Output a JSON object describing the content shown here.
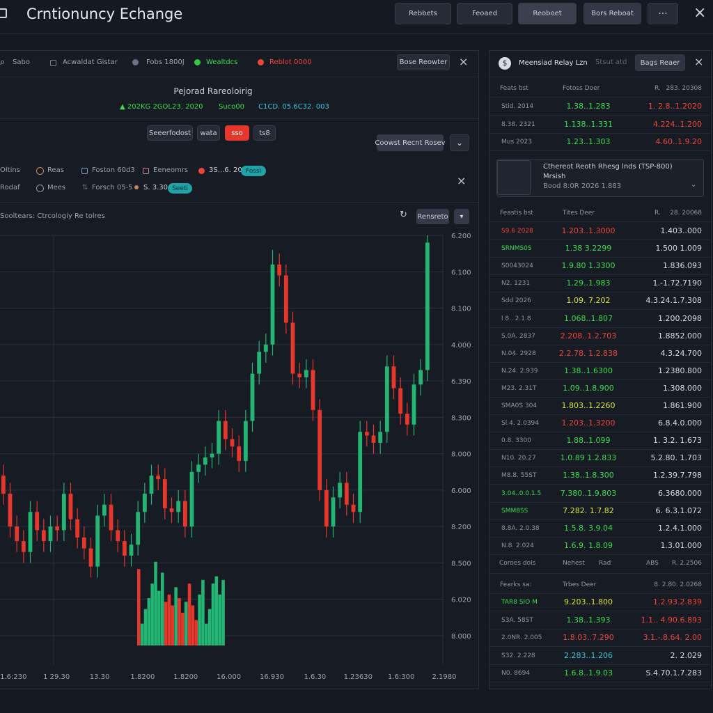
{
  "header": {
    "title": "Crntionuncy Echange",
    "buttons": [
      "Rebbets",
      "Feoaed",
      "Reoboet",
      "Bors Reboat"
    ]
  },
  "left_panel": {
    "toolbar": {
      "search": "Sabo",
      "items": [
        "Acwaldat Gistar",
        "Fobs 1800J",
        "Wealtdcs",
        "Reblot 0000"
      ],
      "button": "Bose Reowter"
    },
    "summary": {
      "title": "Pejorad Rareoloirig",
      "stats": [
        "▲ 202KG 2GOL23. 2020",
        "Suco00",
        "C1CD. 05.6C32. 003"
      ]
    },
    "tabs": [
      "Seeerfodost",
      "wata",
      "sso",
      "ts8"
    ],
    "action": "Coowst Recnt Rosev",
    "filters": [
      [
        "Oltins",
        "Reas",
        "Foston 60d3",
        "Eeneomrs",
        "3S...6. 200",
        "Fossi"
      ],
      [
        "Rodaf",
        "Mees",
        "Forsch 05-5",
        "S. 3.30",
        "Seeti"
      ]
    ],
    "chart_title": "Sooltears: Ctrcologiy Re tolres",
    "chart_button": "Rensreto"
  },
  "chart_data": {
    "type": "candlestick",
    "up_color": "#22b573",
    "down_color": "#e5372c",
    "grid": true,
    "xlim": [
      -0.5,
      65.5
    ],
    "ylim": [
      0,
      11
    ],
    "xticks": [
      {
        "value": 1.5,
        "label": "1.6:230"
      },
      {
        "value": 7.9,
        "label": "1 29.30"
      },
      {
        "value": 14.3,
        "label": "13.30"
      },
      {
        "value": 20.7,
        "label": "1.8200"
      },
      {
        "value": 27.1,
        "label": "1.8200"
      },
      {
        "value": 33.5,
        "label": "16.000"
      },
      {
        "value": 39.9,
        "label": "16.930"
      },
      {
        "value": 46.3,
        "label": "1.6.30"
      },
      {
        "value": 52.7,
        "label": "1.23630"
      },
      {
        "value": 59.1,
        "label": "1.6:300"
      },
      {
        "value": 65.5,
        "label": "2.1980"
      }
    ],
    "yticks": [
      {
        "value": 0,
        "label": "8.000"
      },
      {
        "value": 1,
        "label": "6.020"
      },
      {
        "value": 2,
        "label": "8.500"
      },
      {
        "value": 3,
        "label": "8.200"
      },
      {
        "value": 4,
        "label": "6.000"
      },
      {
        "value": 5,
        "label": "8.000"
      },
      {
        "value": 6,
        "label": "8.300"
      },
      {
        "value": 7,
        "label": "6.390"
      },
      {
        "value": 8,
        "label": "4.000"
      },
      {
        "value": 9,
        "label": "8.100"
      },
      {
        "value": 10,
        "label": "6.100"
      },
      {
        "value": 11,
        "label": "6.200"
      }
    ],
    "open": [
      4.4,
      3.9,
      3.0,
      2.6,
      2.3,
      3.4,
      2.9,
      2.6,
      3.0,
      2.9,
      3.9,
      3.2,
      2.7,
      2.4,
      1.9,
      3.3,
      3.6,
      2.9,
      2.6,
      2.2,
      2.5,
      3.4,
      3.9,
      4.4,
      4.3,
      3.5,
      3.4,
      3.7,
      3.0,
      4.5,
      4.7,
      4.9,
      5.0,
      5.9,
      5.4,
      5.2,
      4.8,
      5.9,
      7.2,
      7.8,
      8.0,
      10.2,
      9.9,
      8.6,
      7.2,
      7.1,
      7.3,
      6.2,
      4.0,
      3.0,
      3.8,
      4.2,
      3.6,
      3.4,
      5.6,
      5.5,
      5.3,
      5.6,
      7.4,
      6.8,
      6.1,
      5.8,
      6.9,
      7.3
    ],
    "high": [
      4.7,
      4.2,
      3.3,
      2.9,
      3.7,
      3.7,
      3.2,
      3.3,
      3.3,
      4.2,
      4.2,
      3.5,
      3.0,
      2.7,
      3.6,
      3.9,
      3.9,
      3.2,
      2.9,
      2.8,
      3.7,
      4.2,
      4.7,
      4.7,
      4.6,
      3.8,
      4.0,
      4.0,
      4.8,
      5.0,
      5.2,
      5.3,
      6.2,
      6.2,
      5.7,
      5.5,
      6.2,
      7.5,
      8.1,
      8.3,
      10.6,
      10.5,
      10.2,
      8.9,
      7.5,
      7.6,
      7.6,
      6.5,
      4.3,
      4.1,
      4.5,
      4.5,
      3.9,
      5.9,
      5.9,
      5.8,
      5.9,
      7.7,
      7.7,
      7.1,
      6.4,
      7.2,
      7.6,
      11.0
    ],
    "low": [
      3.6,
      2.7,
      2.3,
      2.0,
      2.0,
      2.6,
      2.3,
      2.3,
      2.6,
      2.6,
      2.9,
      2.4,
      2.1,
      1.6,
      1.6,
      3.0,
      2.6,
      2.3,
      1.9,
      1.9,
      2.2,
      3.1,
      3.6,
      4.0,
      3.2,
      3.1,
      3.1,
      2.7,
      2.7,
      4.2,
      4.4,
      4.6,
      4.7,
      5.1,
      4.9,
      4.5,
      4.5,
      5.6,
      6.9,
      7.5,
      7.7,
      9.6,
      8.3,
      6.9,
      6.8,
      6.8,
      5.9,
      3.7,
      2.7,
      2.7,
      3.5,
      3.3,
      3.1,
      3.1,
      5.2,
      5.0,
      5.0,
      5.3,
      6.5,
      5.8,
      5.5,
      5.5,
      6.6,
      7.0
    ],
    "close": [
      3.9,
      3.0,
      2.6,
      2.3,
      3.4,
      2.9,
      2.6,
      3.0,
      2.9,
      3.9,
      3.2,
      2.7,
      2.4,
      1.9,
      3.3,
      3.6,
      2.9,
      2.6,
      2.2,
      2.5,
      3.4,
      3.9,
      4.4,
      4.3,
      3.5,
      3.4,
      3.7,
      3.0,
      4.5,
      4.7,
      4.9,
      5.0,
      5.9,
      5.4,
      5.2,
      4.8,
      5.9,
      7.2,
      7.8,
      8.0,
      10.2,
      9.9,
      8.6,
      7.2,
      7.1,
      7.3,
      6.2,
      4.0,
      3.0,
      3.8,
      4.2,
      3.6,
      3.4,
      5.6,
      5.5,
      5.3,
      5.6,
      7.4,
      6.8,
      6.1,
      5.8,
      6.9,
      7.3,
      10.8
    ],
    "volume": {
      "values": [
        2.1,
        0.6,
        1.0,
        1.3,
        1.7,
        2.3,
        1.5,
        2.0,
        1.2,
        1.4,
        1.1,
        1.6,
        1.3,
        0.9,
        1.2,
        1.7,
        1.1,
        0.7,
        1.4,
        1.8,
        0.6,
        1.0,
        1.7,
        1.9,
        1.4,
        1.8
      ],
      "colors": [
        "#e5372c",
        "#22b573",
        "#22b573",
        "#22b573",
        "#22b573",
        "#22b573",
        "#22b573",
        "#22b573",
        "#e5372c",
        "#e5372c",
        "#e5372c",
        "#22b573",
        "#e5372c",
        "#e5372c",
        "#22b573",
        "#e5372c",
        "#e5372c",
        "#e5372c",
        "#22b573",
        "#22b573",
        "#22b573",
        "#22b573",
        "#22b573",
        "#22b573",
        "#22b573",
        "#22b573"
      ]
    }
  },
  "right_panel": {
    "title": "Meensiad Relay Lzn",
    "subtitle": "Stsut atd",
    "button": "Bags Reaer",
    "book1": {
      "header": [
        "Feats bst",
        "Fotoss Doer",
        "R.",
        "283. 20308"
      ],
      "rows": [
        {
          "cells": [
            "Stid. 2014",
            "1.38..1.283",
            "1. 2.8..1.2020"
          ],
          "colors": [
            "#8f97a5",
            "#3ddc4f",
            "#f0463a"
          ]
        },
        {
          "cells": [
            "8.38. 2321",
            "1.138..1.331",
            "4.224..1.200"
          ],
          "colors": [
            "#8f97a5",
            "#3ddc4f",
            "#f0463a"
          ]
        },
        {
          "cells": [
            "Mus 2023",
            "1.23..1.303",
            "4.60..1.9.20"
          ],
          "colors": [
            "#8f97a5",
            "#3ddc4f",
            "#f0463a"
          ]
        }
      ]
    },
    "card": {
      "title": "Cthereot Reoth Rhesg lnds (TSP-800)",
      "line1": "Mrsish",
      "line2": "Bood 8:0R 2026 1.883"
    },
    "book2": {
      "header": [
        "Feastis bst",
        "Tites Deer",
        "R.",
        "28. 20068"
      ],
      "rows": [
        {
          "cells": [
            "S9.6 2028",
            "1.203..1.3000",
            "1.403..000"
          ],
          "colors": [
            "#f0463a",
            "#f0463a",
            "#d9dde4"
          ]
        },
        {
          "cells": [
            "SRNMS0S",
            "1.38 3.2299",
            "1.500 1.009"
          ],
          "colors": [
            "#3ddc4f",
            "#3ddc4f",
            "#d9dde4"
          ]
        },
        {
          "cells": [
            "S0043024",
            "1.9.80 1.3300",
            "1.836.093"
          ],
          "colors": [
            "#8f97a5",
            "#3ddc4f",
            "#d9dde4"
          ]
        },
        {
          "cells": [
            "N2. 1231",
            "1.29..1.983",
            "1.-1.72.7190"
          ],
          "colors": [
            "#8f97a5",
            "#3ddc4f",
            "#d9dde4"
          ]
        },
        {
          "cells": [
            "Sdd 2026",
            "1.09. 7.202",
            "4.3.24.1.7.308"
          ],
          "colors": [
            "#8f97a5",
            "#d6e23a",
            "#d9dde4"
          ]
        },
        {
          "cells": [
            "l 8.. 2.1.8",
            "1.068..1.807",
            "1.200.2098"
          ],
          "colors": [
            "#8f97a5",
            "#3ddc4f",
            "#d9dde4"
          ]
        },
        {
          "cells": [
            "S.0A. 2837",
            "2.208..1.2.703",
            "1.8852.000"
          ],
          "colors": [
            "#8f97a5",
            "#f0463a",
            "#d9dde4"
          ]
        },
        {
          "cells": [
            "N.04. 2928",
            "2.2.78. 1.2.838",
            "4.3.24.700"
          ],
          "colors": [
            "#8f97a5",
            "#f0463a",
            "#d9dde4"
          ]
        },
        {
          "cells": [
            "N.24. 2.939",
            "1.38..1.6300",
            "1.2380.800"
          ],
          "colors": [
            "#8f97a5",
            "#3ddc4f",
            "#d9dde4"
          ]
        },
        {
          "cells": [
            "M23. 2.31T",
            "1.09..1.8.900",
            "1.308.000"
          ],
          "colors": [
            "#8f97a5",
            "#3ddc4f",
            "#d9dde4"
          ]
        },
        {
          "cells": [
            "SMA0S 304",
            "1.803..1.2260",
            "1.861.900"
          ],
          "colors": [
            "#8f97a5",
            "#d6e23a",
            "#d9dde4"
          ]
        },
        {
          "cells": [
            "Sl.4. 2.0394",
            "1.203..1.3200",
            "6.8.4.0.000"
          ],
          "colors": [
            "#8f97a5",
            "#f0463a",
            "#d9dde4"
          ]
        },
        {
          "cells": [
            "0.8. 3300",
            "1.88..1.099",
            "1. 3.2. 1.673"
          ],
          "colors": [
            "#8f97a5",
            "#3ddc4f",
            "#d9dde4"
          ]
        },
        {
          "cells": [
            "N10. 20.27",
            "1.0.89 1.2.833",
            "5.2.80. 1.703"
          ],
          "colors": [
            "#8f97a5",
            "#3ddc4f",
            "#d9dde4"
          ]
        },
        {
          "cells": [
            "M8.8. 55ST",
            "1.38..1.8.300",
            "1.2.39.7.798"
          ],
          "colors": [
            "#8f97a5",
            "#3ddc4f",
            "#d9dde4"
          ]
        },
        {
          "cells": [
            "3.04..0.0.1.5",
            "7.380..1.9.803",
            "6.3680.000"
          ],
          "colors": [
            "#3ddc4f",
            "#3ddc4f",
            "#d9dde4"
          ]
        },
        {
          "cells": [
            "SMM8SS",
            "7.282. 1.7.82",
            "6. 6.3.1.072"
          ],
          "colors": [
            "#3ddc4f",
            "#d6e23a",
            "#d9dde4"
          ]
        },
        {
          "cells": [
            "8.8A. 2.0.38",
            "1.5.8. 3.9.04",
            "1.2.4.1.000"
          ],
          "colors": [
            "#8f97a5",
            "#3ddc4f",
            "#d9dde4"
          ]
        },
        {
          "cells": [
            "N.8. 2.024",
            "1.6.9. 1.8.09",
            "1.3.01.000"
          ],
          "colors": [
            "#8f97a5",
            "#3ddc4f",
            "#d9dde4"
          ]
        }
      ],
      "footer": [
        "Coroes dols",
        "Nehest",
        "Rad",
        "ABS",
        "R. 2.2506"
      ]
    },
    "book3": {
      "header": [
        "Fearks sa:",
        "Trbes Deer",
        "",
        "8. 2.80. 2.0268"
      ],
      "rows": [
        {
          "cells": [
            "TAR8 SIO M",
            "9.203..1.800",
            "1.2.93.2.839"
          ],
          "colors": [
            "#3ddc4f",
            "#d6e23a",
            "#f0463a"
          ]
        },
        {
          "cells": [
            "S3A. 58ST",
            "1.38..1.393",
            "1.1.. 4.90.6.893"
          ],
          "colors": [
            "#8f97a5",
            "#3ddc4f",
            "#f0463a"
          ]
        },
        {
          "cells": [
            "2.0NR. 2.005",
            "1.8.03..7.290",
            "3.1.-.8.64. 2.00"
          ],
          "colors": [
            "#8f97a5",
            "#f0463a",
            "#f0463a"
          ]
        },
        {
          "cells": [
            "S32. 2.228",
            "2.283..1.206",
            "2. 2.029"
          ],
          "colors": [
            "#8f97a5",
            "#3ec6d6",
            "#d9dde4"
          ]
        },
        {
          "cells": [
            "N0. 8694",
            "1.6.8..1.9.03",
            "S.4.70.1.7.283"
          ],
          "colors": [
            "#8f97a5",
            "#3ddc4f",
            "#d9dde4"
          ]
        }
      ]
    }
  }
}
